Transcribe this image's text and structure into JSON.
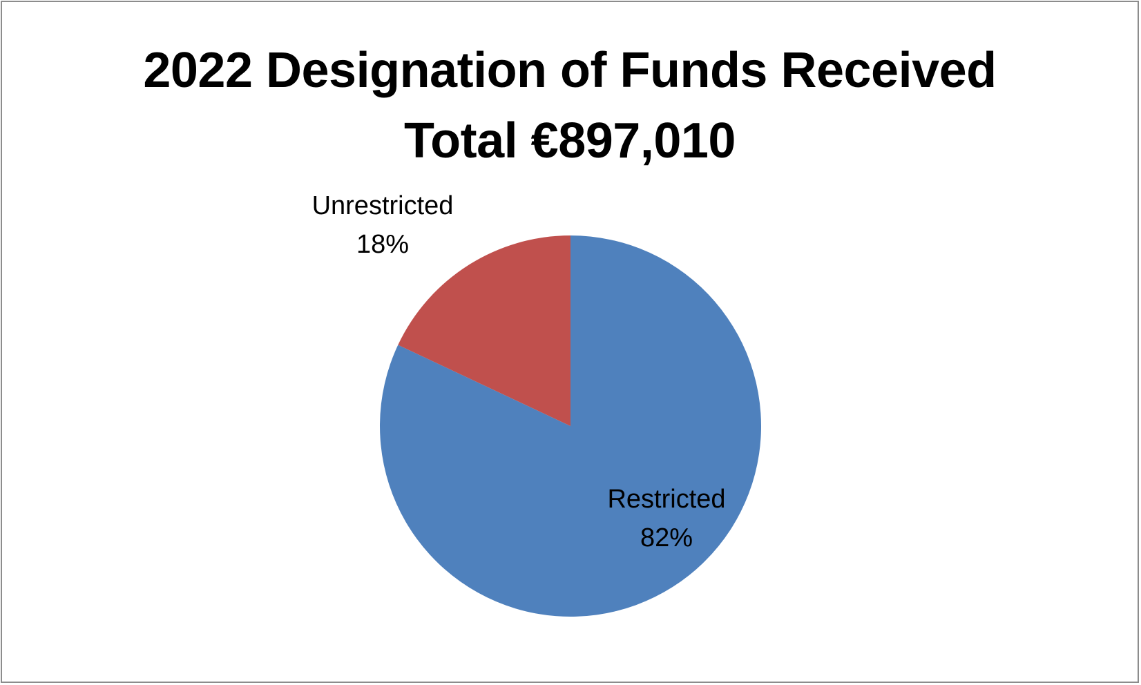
{
  "chart_data": {
    "type": "pie",
    "title": "2022 Designation of Funds Received",
    "subtitle": "Total €897,010",
    "slices": [
      {
        "name": "Restricted",
        "value": 82,
        "label": "82%",
        "color": "#4F81BD"
      },
      {
        "name": "Unrestricted",
        "value": 18,
        "label": "18%",
        "color": "#C0504D"
      }
    ],
    "legend": "none",
    "start": "top",
    "direction": "clockwise"
  }
}
